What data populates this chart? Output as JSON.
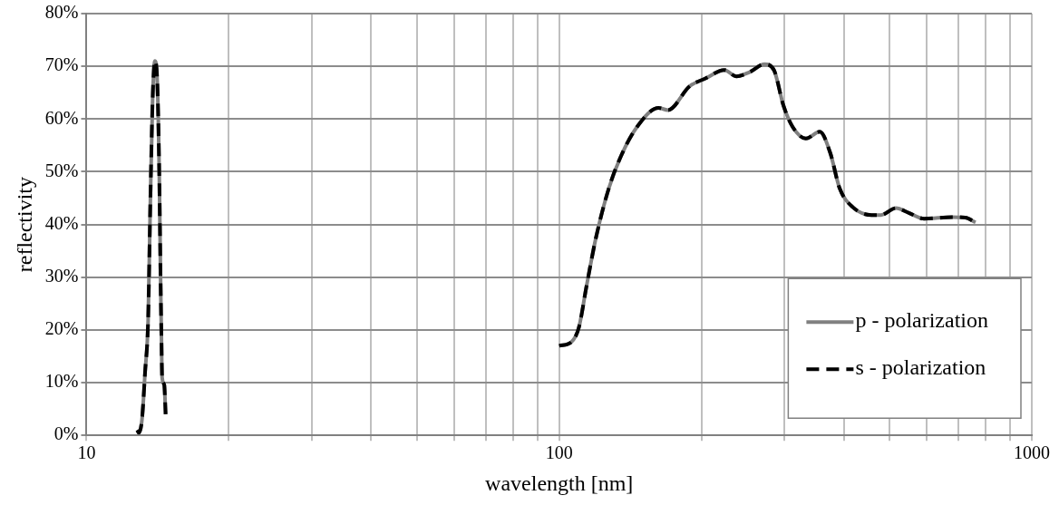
{
  "chart_data": {
    "type": "line",
    "xlabel": "wavelength [nm]",
    "ylabel": "reflectivity",
    "x": [
      12.8,
      12.9,
      13.1,
      13.3,
      13.5,
      13.65,
      13.8,
      13.95,
      14.1,
      14.25,
      14.35,
      14.4,
      14.45,
      14.6,
      14.7,
      50,
      100,
      106.1,
      110.1,
      114.2,
      119.5,
      127.4,
      135.2,
      146.1,
      162.3,
      169.9,
      188.7,
      203.9,
      223.6,
      237.1,
      252.8,
      272,
      284.7,
      298.1,
      311.9,
      332.6,
      356.1,
      374.5,
      392,
      417.8,
      457.9,
      479.3,
      515.7,
      549.5,
      591.3,
      678.3,
      722.8,
      760.3
    ],
    "series": [
      {
        "name": "p - polarization",
        "color": "#808080",
        "line_style": "solid",
        "values": [
          1,
          0.5,
          3,
          12,
          22,
          45,
          64,
          71,
          68,
          50,
          28,
          19,
          11,
          9.6,
          4,
          null,
          17,
          17.7,
          20.5,
          28.2,
          37.3,
          46.9,
          53,
          58.5,
          62.1,
          61.7,
          66.2,
          67.7,
          69.3,
          68.1,
          68.9,
          70.4,
          69.3,
          62.6,
          58.5,
          56.3,
          57.6,
          53.6,
          46.9,
          43.3,
          41.8,
          41.8,
          43.1,
          42.2,
          41.1,
          41.4,
          41.3,
          40.4
        ]
      },
      {
        "name": "s - polarization",
        "color": "#000000",
        "line_style": "dashed",
        "values": [
          1,
          0.5,
          3,
          12,
          22,
          45,
          64,
          71,
          68,
          50,
          28,
          19,
          11,
          9.6,
          4,
          null,
          17,
          17.7,
          20.5,
          28.2,
          37.3,
          46.9,
          53,
          58.5,
          62.1,
          61.7,
          66.2,
          67.7,
          69.3,
          68.1,
          68.9,
          70.4,
          69.3,
          62.6,
          58.5,
          56.3,
          57.6,
          53.6,
          46.9,
          43.3,
          41.8,
          41.8,
          43.1,
          42.2,
          41.1,
          41.4,
          41.3,
          40.4
        ]
      }
    ],
    "log": "x",
    "xlim": [
      10,
      1000
    ],
    "xticks": [
      10,
      {
        "value": 20,
        "label": null
      },
      {
        "value": 30,
        "label": null
      },
      {
        "value": 40,
        "label": null
      },
      {
        "value": 50,
        "label": null
      },
      {
        "value": 60,
        "label": null
      },
      {
        "value": 70,
        "label": null
      },
      {
        "value": 80,
        "label": null
      },
      {
        "value": 90,
        "label": null
      },
      100,
      {
        "value": 200,
        "label": null
      },
      {
        "value": 300,
        "label": null
      },
      {
        "value": 400,
        "label": null
      },
      {
        "value": 500,
        "label": null
      },
      {
        "value": 600,
        "label": null
      },
      {
        "value": 700,
        "label": null
      },
      {
        "value": 800,
        "label": null
      },
      {
        "value": 900,
        "label": null
      },
      1000
    ],
    "ylim": [
      0,
      80
    ],
    "yticks": [
      {
        "value": 0,
        "label": "0%"
      },
      {
        "value": 10,
        "label": "10%"
      },
      {
        "value": 20,
        "label": "20%"
      },
      {
        "value": 30,
        "label": "30%"
      },
      {
        "value": 40,
        "label": "40%"
      },
      {
        "value": 50,
        "label": "50%"
      },
      {
        "value": 60,
        "label": "60%"
      },
      {
        "value": 70,
        "label": "70%"
      },
      {
        "value": 80,
        "label": "80%"
      }
    ],
    "grid": true,
    "legend": "bottom right",
    "marker": "none"
  }
}
